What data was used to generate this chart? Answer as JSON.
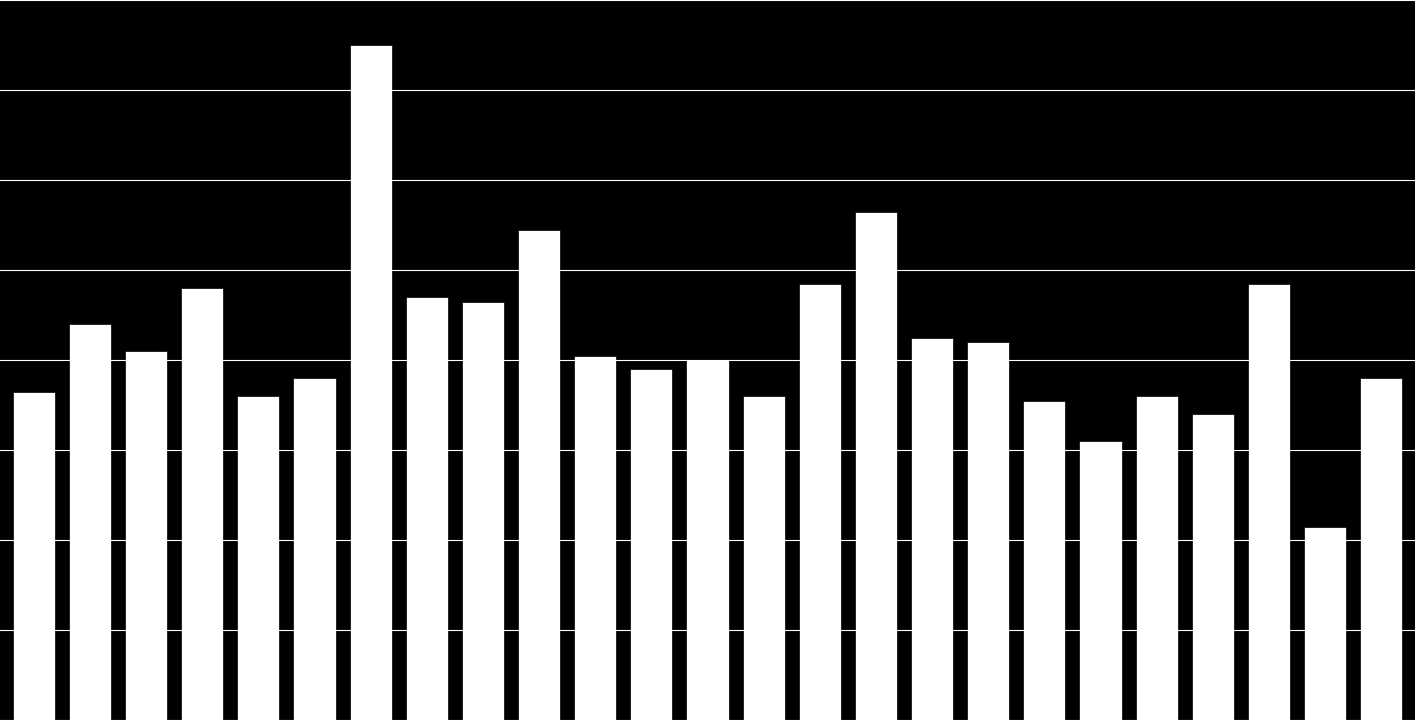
{
  "values": [
    7300,
    8800,
    8200,
    9600,
    7200,
    7600,
    15000,
    9400,
    9300,
    10900,
    8100,
    7800,
    8000,
    7200,
    9700,
    11300,
    8500,
    8400,
    7100,
    6200,
    7200,
    6800,
    9700,
    4300,
    7600
  ],
  "bar_color": "#ffffff",
  "background_color": "#000000",
  "grid_color": "#ffffff",
  "text_color": "#ffffff",
  "ylim": [
    0,
    16000
  ],
  "yticks": [
    0,
    2000,
    4000,
    6000,
    8000,
    10000,
    12000,
    14000,
    16000
  ],
  "figsize": [
    14.15,
    7.2
  ],
  "dpi": 100,
  "bar_width": 0.75
}
